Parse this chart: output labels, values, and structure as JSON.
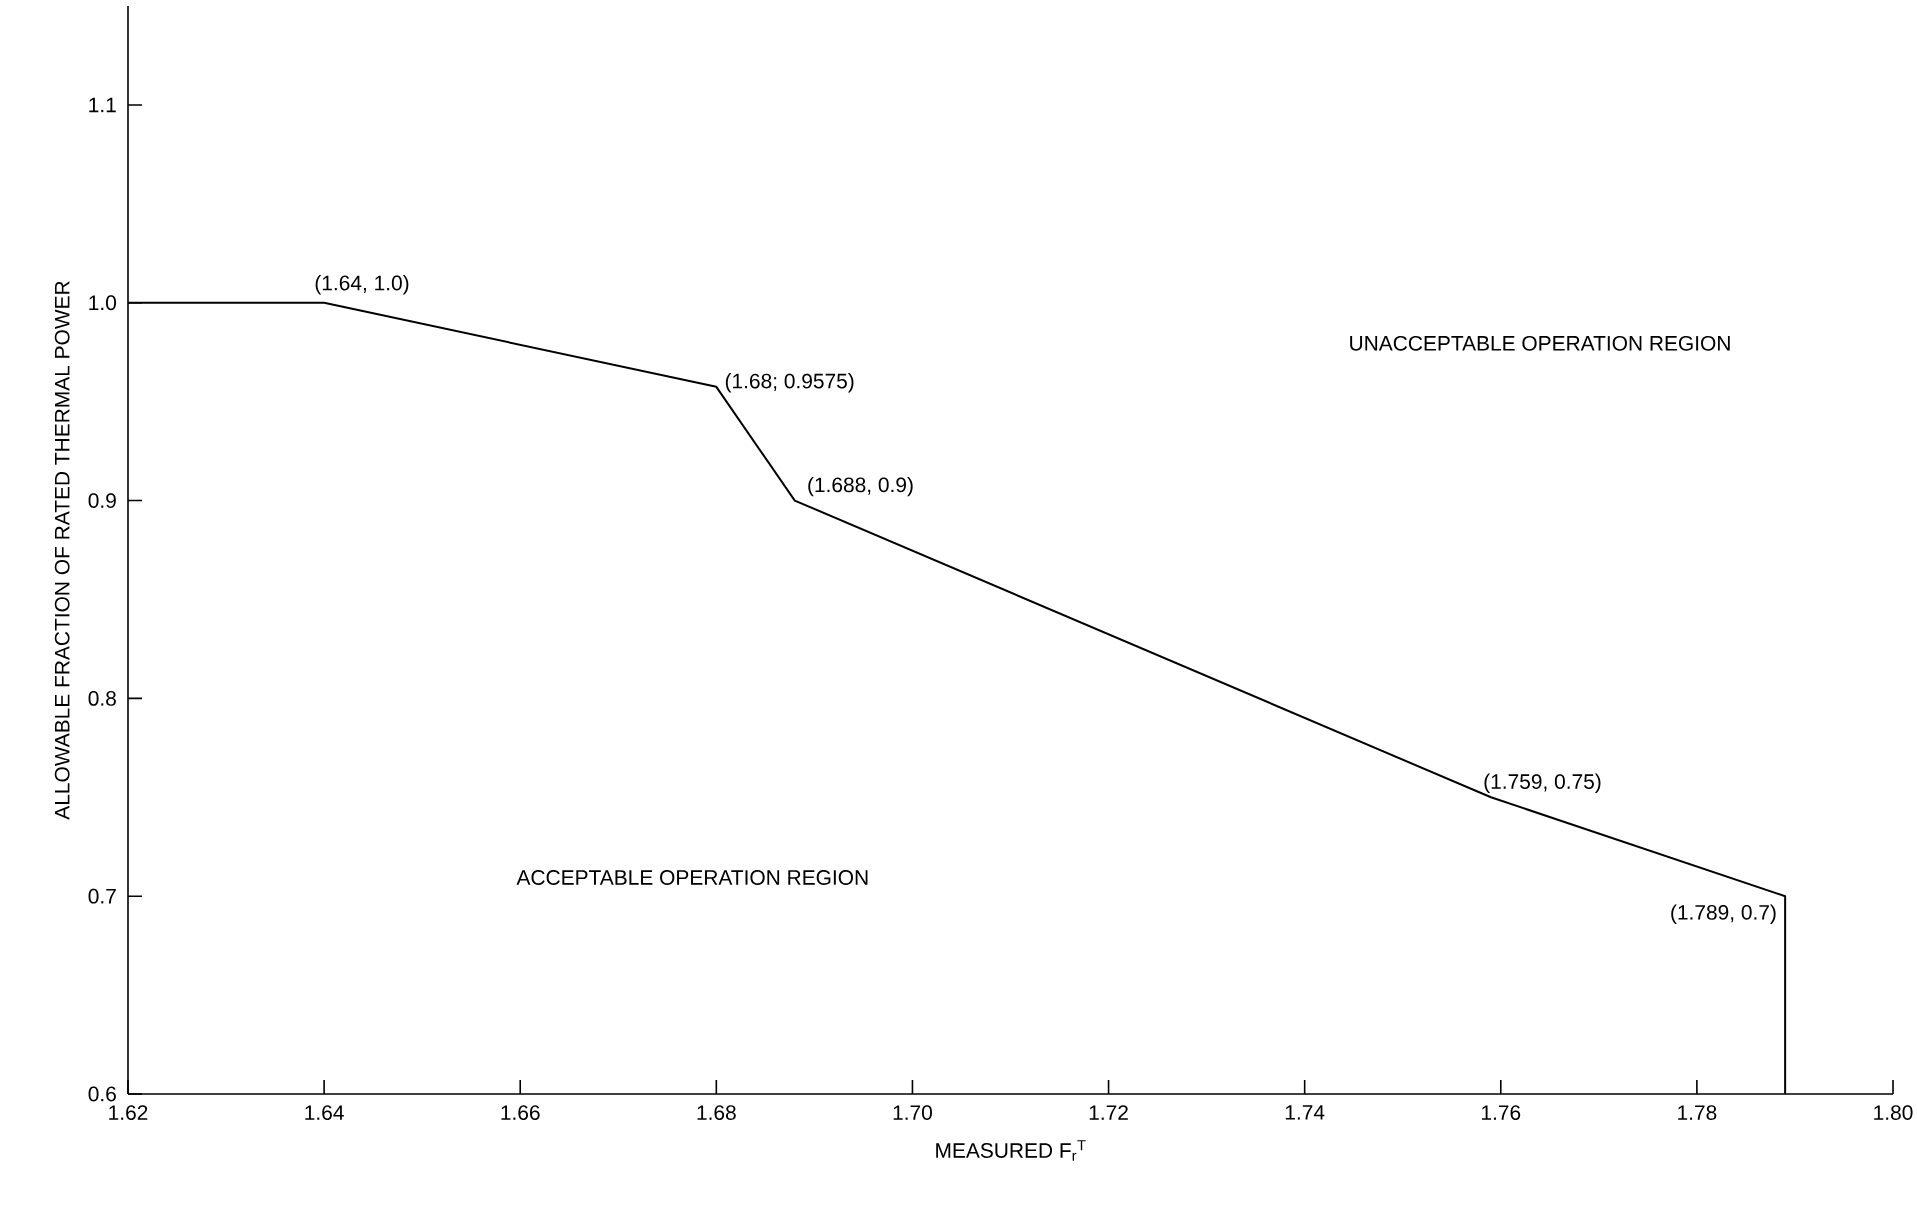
{
  "chart_data": {
    "type": "line",
    "xlabel": "MEASURED F$_{r}$$^{T}$",
    "ylabel": "ALLOWABLE FRACTION OF RATED THERMAL POWER",
    "series": [
      {
        "color": "#000000",
        "line_style": "solid",
        "x": [
          1.62,
          1.64,
          1.68,
          1.688,
          1.759,
          1.789,
          1.789
        ],
        "values": [
          1.0,
          1.0,
          0.9575,
          0.9,
          0.75,
          0.7,
          0.6
        ]
      }
    ],
    "xlim": [
      1.62,
      1.8
    ],
    "xticks": [
      1.62,
      1.64,
      1.66,
      1.68,
      {
        "value": 1.7,
        "label": "1.70"
      },
      1.72,
      1.74,
      1.76,
      1.78,
      {
        "value": 1.8,
        "label": "1.80"
      }
    ],
    "ylim": [
      0.6,
      1.15
    ],
    "yticks": [
      0.6,
      0.7,
      0.8,
      0.9,
      {
        "value": 1.0,
        "label": "1.0"
      },
      1.1
    ],
    "annotations": [
      {
        "text": "(1.64, 1.0)",
        "x": 1.64,
        "y": 1.0
      },
      {
        "text": "(1.68; 0.9575)",
        "x": 1.68,
        "y": 0.9575
      },
      {
        "text": "(1.688, 0.9)",
        "x": 1.688,
        "y": 0.9
      },
      {
        "text": "(1.759, 0.75)",
        "x": 1.759,
        "y": 0.75
      },
      {
        "text": "(1.789, 0.7)",
        "x": 1.789,
        "y": 0.7
      },
      "UNACCEPTABLE OPERATION REGION",
      "ACCEPTABLE OPERATION REGION"
    ],
    "marker": "none"
  }
}
